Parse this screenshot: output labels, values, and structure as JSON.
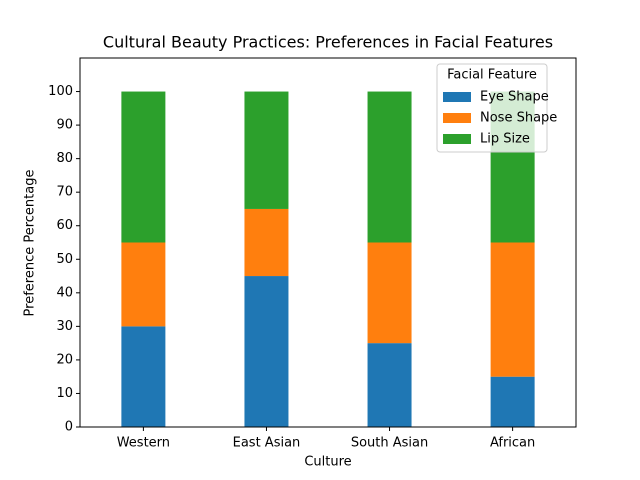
{
  "chart_data": {
    "type": "stacked_bar",
    "title": "Cultural Beauty Practices: Preferences in Facial Features",
    "x_label": "Culture",
    "y_label": "Preference Percentage",
    "categories": [
      "Western",
      "East Asian",
      "South Asian",
      "African"
    ],
    "series": [
      {
        "name": "Eye Shape",
        "color": "#1f77b4",
        "values": [
          30,
          45,
          25,
          15
        ]
      },
      {
        "name": "Nose Shape",
        "color": "#ff7f0e",
        "values": [
          25,
          20,
          30,
          40
        ]
      },
      {
        "name": "Lip Size",
        "color": "#2ca02c",
        "values": [
          45,
          35,
          45,
          45
        ]
      }
    ],
    "legend_title": "Facial Feature",
    "legend_position": "upper right",
    "ylim": [
      0,
      110
    ],
    "yticks": [
      0,
      10,
      20,
      30,
      40,
      50,
      60,
      70,
      80,
      90,
      100
    ]
  }
}
